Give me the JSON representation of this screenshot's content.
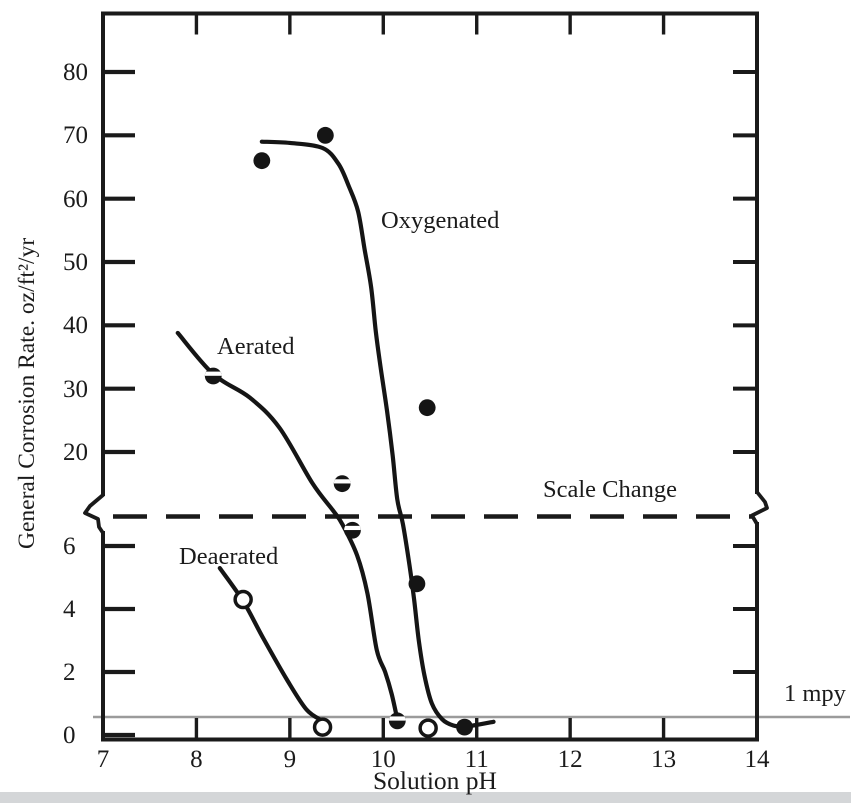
{
  "chart_data": {
    "type": "scatter",
    "title": "",
    "xlabel": "Solution pH",
    "ylabel": "General Corrosion Rate. oz/ft²/yr",
    "x_axis": {
      "min": 7,
      "max": 14,
      "ticks": [
        7,
        8,
        9,
        10,
        11,
        12,
        13,
        14
      ],
      "inner_tick_marks": [
        8,
        9,
        10,
        11,
        12,
        13
      ]
    },
    "y_axis": {
      "broken": true,
      "upper_scale": {
        "ticks": [
          80,
          70,
          60,
          50,
          40,
          30,
          20
        ],
        "units_per_tick": 10
      },
      "lower_scale": {
        "ticks": [
          6,
          4,
          2,
          0
        ],
        "units_per_tick": 2
      },
      "break_label": "Scale Change"
    },
    "series": [
      {
        "name": "Oxygenated",
        "marker": "filled-circle",
        "points": [
          [
            8.7,
            66
          ],
          [
            9.38,
            70
          ],
          [
            10.47,
            27
          ],
          [
            10.36,
            4.8
          ],
          [
            10.87,
            0.25
          ]
        ],
        "curve": [
          [
            8.7,
            69
          ],
          [
            9.0,
            68.8
          ],
          [
            9.35,
            68.0
          ],
          [
            9.52,
            65.5
          ],
          [
            9.63,
            62
          ],
          [
            9.73,
            58
          ],
          [
            9.8,
            52
          ],
          [
            9.87,
            46
          ],
          [
            9.92,
            39
          ],
          [
            9.97,
            33.5
          ],
          [
            10.04,
            26.5
          ],
          [
            10.1,
            19.5
          ],
          [
            10.15,
            12.5
          ],
          [
            10.21,
            6.7
          ],
          [
            10.28,
            5.4
          ],
          [
            10.33,
            4.3
          ],
          [
            10.38,
            3.0
          ],
          [
            10.44,
            1.9
          ],
          [
            10.52,
            1.0
          ],
          [
            10.63,
            0.5
          ],
          [
            10.75,
            0.3
          ],
          [
            10.87,
            0.27
          ],
          [
            11.02,
            0.33
          ],
          [
            11.18,
            0.42
          ]
        ]
      },
      {
        "name": "Aerated",
        "marker": "half-filled-circle",
        "points": [
          [
            8.18,
            32
          ],
          [
            9.56,
            15
          ],
          [
            9.67,
            6.5
          ],
          [
            10.15,
            0.45
          ]
        ],
        "curve": [
          [
            7.8,
            38.8
          ],
          [
            8.18,
            32.3
          ],
          [
            8.57,
            28.6
          ],
          [
            8.89,
            23.8
          ],
          [
            9.24,
            15.1
          ],
          [
            9.46,
            10.8
          ],
          [
            9.56,
            6.7
          ],
          [
            9.72,
            5.7
          ],
          [
            9.83,
            4.5
          ],
          [
            9.93,
            2.7
          ],
          [
            10.02,
            2.0
          ],
          [
            10.09,
            1.3
          ],
          [
            10.15,
            0.5
          ]
        ]
      },
      {
        "name": "Deaerated",
        "marker": "open-circle",
        "points": [
          [
            8.5,
            4.3
          ],
          [
            9.35,
            0.25
          ],
          [
            10.48,
            0.22
          ]
        ],
        "curve": [
          [
            8.25,
            5.3
          ],
          [
            8.5,
            4.25
          ],
          [
            8.71,
            3.1
          ],
          [
            8.97,
            1.75
          ],
          [
            9.18,
            0.8
          ],
          [
            9.35,
            0.45
          ]
        ]
      }
    ],
    "annotations": {
      "oxygenated": "Oxygenated",
      "aerated": "Aerated",
      "deaerated": "Deaerated",
      "scale_change": "Scale Change",
      "one_mpy": "1 mpy"
    },
    "reference_lines": {
      "one_mpy_value": 0.57
    }
  }
}
